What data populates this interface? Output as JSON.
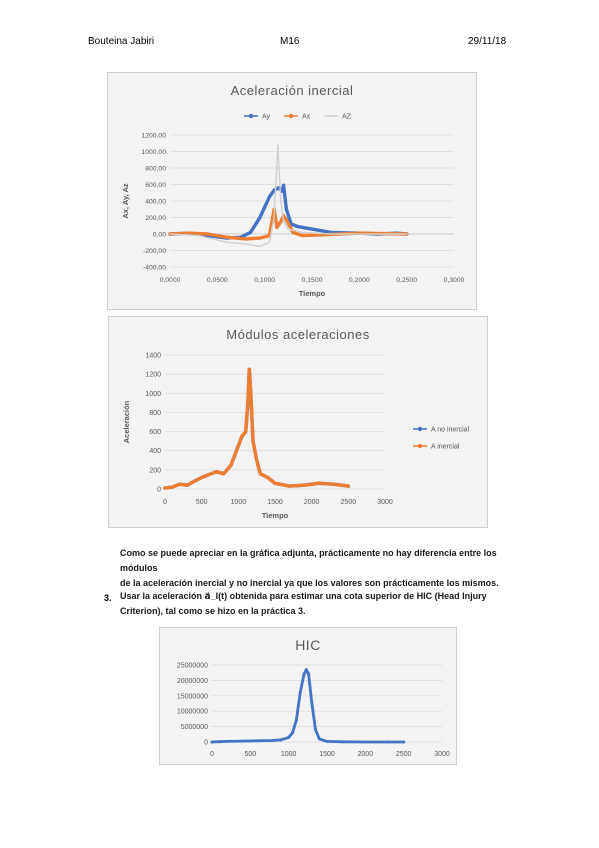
{
  "header": {
    "author": "Bouteina Jabiri",
    "course": "M16",
    "date": "29/11/18"
  },
  "charts": [
    {
      "title": "Aceleración inercial",
      "xlabel": "Tiempo",
      "ylabel": "Ax, Ay, Az",
      "legend": [
        "Ay",
        "Ax",
        "AZ"
      ],
      "xticks": [
        "0,0000",
        "0,0500",
        "0,1000",
        "0,1500",
        "0,2000",
        "0,2500",
        "0,3000"
      ],
      "yticks": [
        "1200,00",
        "1000,00",
        "800,00",
        "600,00",
        "400,00",
        "200,00",
        "0,00",
        "-200,00",
        "-400,00"
      ],
      "colors": {
        "Ay": "#4472c4",
        "Ax": "#ed7d31",
        "AZ": "#d0d0d0"
      }
    },
    {
      "title": "Módulos aceleraciones",
      "xlabel": "Tiempo",
      "ylabel": "Aceleración",
      "legend": [
        "A no inercial",
        "A inercial"
      ],
      "xticks": [
        "0",
        "500",
        "1000",
        "1500",
        "2000",
        "2500",
        "3000"
      ],
      "yticks": [
        "1400",
        "1200",
        "1000",
        "800",
        "600",
        "400",
        "200",
        "0"
      ],
      "colors": {
        "A no inercial": "#4472c4",
        "A inercial": "#ed7d31"
      }
    },
    {
      "title": "HIC",
      "xticks": [
        "0",
        "500",
        "1000",
        "1500",
        "2000",
        "2500",
        "3000"
      ],
      "yticks": [
        "25000000",
        "20000000",
        "15000000",
        "10000000",
        "5000000",
        "0"
      ],
      "colors": {
        "HIC": "#4472c4"
      }
    }
  ],
  "paragraph1": [
    "Como se puede apreciar en la gráfica adjunta, prácticamente no hay diferencia entre los módulos",
    "de la aceleración inercial y no inercial ya que los valores son prácticamente los mismos."
  ],
  "item3": {
    "number": "3.",
    "line1": "Usar la aceleración a⃗_I(t) obtenida para estimar una cota superior de HIC (Head Injury",
    "line2": "Criterion), tal como se hizo en la práctica 3."
  },
  "chart_data": [
    {
      "type": "line",
      "title": "Aceleración inercial",
      "xlabel": "Tiempo",
      "ylabel": "Ax, Ay, Az",
      "xlim": [
        0,
        0.3
      ],
      "ylim": [
        -400,
        1200
      ],
      "grid": true,
      "legend": "top",
      "series": [
        {
          "name": "Ay",
          "x": [
            0,
            0.02,
            0.04,
            0.06,
            0.075,
            0.085,
            0.095,
            0.105,
            0.11,
            0.115,
            0.118,
            0.12,
            0.123,
            0.128,
            0.135,
            0.15,
            0.17,
            0.2,
            0.22,
            0.24,
            0.25
          ],
          "y": [
            0,
            10,
            -20,
            -50,
            -40,
            20,
            200,
            450,
            530,
            560,
            520,
            590,
            300,
            120,
            90,
            60,
            20,
            10,
            0,
            10,
            0
          ]
        },
        {
          "name": "Ax",
          "x": [
            0,
            0.02,
            0.04,
            0.06,
            0.08,
            0.095,
            0.105,
            0.11,
            0.113,
            0.117,
            0.12,
            0.123,
            0.13,
            0.14,
            0.16,
            0.2,
            0.25
          ],
          "y": [
            0,
            10,
            0,
            -40,
            -60,
            -50,
            -20,
            300,
            80,
            150,
            220,
            170,
            20,
            -20,
            -10,
            10,
            0
          ]
        },
        {
          "name": "AZ",
          "x": [
            0,
            0.03,
            0.06,
            0.08,
            0.095,
            0.105,
            0.11,
            0.114,
            0.117,
            0.12,
            0.125,
            0.14,
            0.17,
            0.25
          ],
          "y": [
            0,
            -20,
            -100,
            -120,
            -150,
            -100,
            200,
            1080,
            400,
            150,
            60,
            20,
            0,
            0
          ]
        }
      ]
    },
    {
      "type": "line",
      "title": "Módulos aceleraciones",
      "xlabel": "Tiempo",
      "ylabel": "Aceleración",
      "xlim": [
        0,
        3000
      ],
      "ylim": [
        0,
        1400
      ],
      "grid": true,
      "legend": "right",
      "series": [
        {
          "name": "A no inercial",
          "x": [
            0,
            100,
            200,
            300,
            400,
            500,
            600,
            700,
            800,
            900,
            1000,
            1050,
            1100,
            1130,
            1150,
            1170,
            1200,
            1250,
            1300,
            1400,
            1500,
            1700,
            1900,
            2100,
            2300,
            2500
          ],
          "y": [
            10,
            20,
            50,
            40,
            80,
            120,
            150,
            180,
            160,
            250,
            450,
            550,
            600,
            900,
            1250,
            1000,
            500,
            300,
            160,
            120,
            60,
            30,
            40,
            60,
            50,
            30
          ]
        },
        {
          "name": "A inercial",
          "x": [
            0,
            100,
            200,
            300,
            400,
            500,
            600,
            700,
            800,
            900,
            1000,
            1050,
            1100,
            1130,
            1150,
            1170,
            1200,
            1250,
            1300,
            1400,
            1500,
            1700,
            1900,
            2100,
            2300,
            2500
          ],
          "y": [
            10,
            20,
            50,
            40,
            80,
            120,
            150,
            180,
            160,
            250,
            450,
            550,
            600,
            900,
            1250,
            1000,
            500,
            300,
            160,
            120,
            60,
            30,
            40,
            60,
            50,
            30
          ]
        }
      ]
    },
    {
      "type": "line",
      "title": "HIC",
      "xlim": [
        0,
        3000
      ],
      "ylim": [
        0,
        25000000
      ],
      "grid": true,
      "series": [
        {
          "name": "HIC",
          "x": [
            0,
            100,
            200,
            400,
            600,
            800,
            900,
            1000,
            1050,
            1100,
            1150,
            1200,
            1230,
            1260,
            1300,
            1350,
            1400,
            1500,
            1700,
            2000,
            2300,
            2500
          ],
          "y": [
            0,
            100000,
            200000,
            300000,
            400000,
            500000,
            700000,
            1500000,
            3000000,
            7000000,
            16000000,
            22000000,
            23500000,
            22000000,
            13000000,
            4000000,
            1000000,
            200000,
            50000,
            0,
            0,
            0
          ]
        }
      ]
    }
  ]
}
